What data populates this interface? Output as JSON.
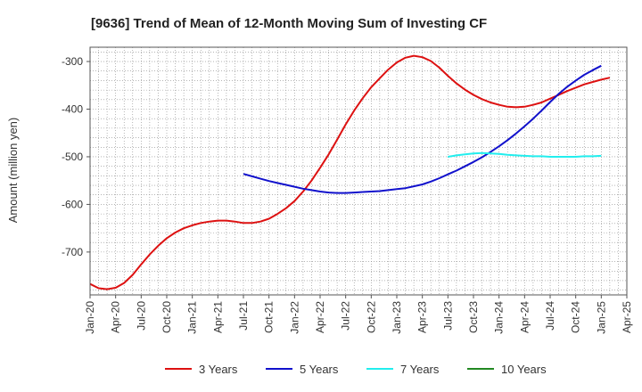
{
  "chart_data": {
    "type": "line",
    "title": "[9636]  Trend of Mean of 12-Month Moving Sum of Investing CF",
    "xlabel": "",
    "ylabel": "Amount (million yen)",
    "ylim": [
      -790,
      -270
    ],
    "yticks": [
      -300,
      -400,
      -500,
      -600,
      -700
    ],
    "ytick_labels": [
      "-300",
      "-400",
      "-500",
      "-600",
      "-700"
    ],
    "xlim": [
      "2020-01",
      "2025-04"
    ],
    "xtick_labels": [
      "Jan-20",
      "Apr-20",
      "Jul-20",
      "Oct-20",
      "Jan-21",
      "Apr-21",
      "Jul-21",
      "Oct-21",
      "Jan-22",
      "Apr-22",
      "Jul-22",
      "Oct-22",
      "Jan-23",
      "Apr-23",
      "Jul-23",
      "Oct-23",
      "Jan-24",
      "Apr-24",
      "Jul-24",
      "Oct-24",
      "Jan-25",
      "Apr-25"
    ],
    "grid": true,
    "legend_position": "bottom",
    "series": [
      {
        "name": "3 Years",
        "color": "#dd1111",
        "points": [
          [
            "2020-01",
            -767
          ],
          [
            "2020-02",
            -776
          ],
          [
            "2020-03",
            -778
          ],
          [
            "2020-04",
            -775
          ],
          [
            "2020-05",
            -765
          ],
          [
            "2020-06",
            -748
          ],
          [
            "2020-07",
            -726
          ],
          [
            "2020-08",
            -705
          ],
          [
            "2020-09",
            -687
          ],
          [
            "2020-10",
            -671
          ],
          [
            "2020-11",
            -659
          ],
          [
            "2020-12",
            -650
          ],
          [
            "2021-01",
            -644
          ],
          [
            "2021-02",
            -639
          ],
          [
            "2021-03",
            -636
          ],
          [
            "2021-04",
            -634
          ],
          [
            "2021-05",
            -634
          ],
          [
            "2021-06",
            -636
          ],
          [
            "2021-07",
            -639
          ],
          [
            "2021-08",
            -639
          ],
          [
            "2021-09",
            -636
          ],
          [
            "2021-10",
            -630
          ],
          [
            "2021-11",
            -620
          ],
          [
            "2021-12",
            -608
          ],
          [
            "2022-01",
            -593
          ],
          [
            "2022-02",
            -573
          ],
          [
            "2022-03",
            -550
          ],
          [
            "2022-04",
            -523
          ],
          [
            "2022-05",
            -495
          ],
          [
            "2022-06",
            -464
          ],
          [
            "2022-07",
            -432
          ],
          [
            "2022-08",
            -403
          ],
          [
            "2022-09",
            -377
          ],
          [
            "2022-10",
            -354
          ],
          [
            "2022-11",
            -335
          ],
          [
            "2022-12",
            -317
          ],
          [
            "2023-01",
            -302
          ],
          [
            "2023-02",
            -292
          ],
          [
            "2023-03",
            -288
          ],
          [
            "2023-04",
            -291
          ],
          [
            "2023-05",
            -299
          ],
          [
            "2023-06",
            -313
          ],
          [
            "2023-07",
            -330
          ],
          [
            "2023-08",
            -346
          ],
          [
            "2023-09",
            -359
          ],
          [
            "2023-10",
            -370
          ],
          [
            "2023-11",
            -379
          ],
          [
            "2023-12",
            -386
          ],
          [
            "2024-01",
            -391
          ],
          [
            "2024-02",
            -395
          ],
          [
            "2024-03",
            -396
          ],
          [
            "2024-04",
            -395
          ],
          [
            "2024-05",
            -391
          ],
          [
            "2024-06",
            -386
          ],
          [
            "2024-07",
            -378
          ],
          [
            "2024-08",
            -370
          ],
          [
            "2024-09",
            -362
          ],
          [
            "2024-10",
            -355
          ],
          [
            "2024-11",
            -348
          ],
          [
            "2024-12",
            -343
          ],
          [
            "2025-01",
            -338
          ],
          [
            "2025-02",
            -334
          ]
        ]
      },
      {
        "name": "5 Years",
        "color": "#1111cc",
        "points": [
          [
            "2021-07",
            -536
          ],
          [
            "2021-08",
            -541
          ],
          [
            "2021-09",
            -546
          ],
          [
            "2021-10",
            -551
          ],
          [
            "2021-11",
            -555
          ],
          [
            "2021-12",
            -559
          ],
          [
            "2022-01",
            -563
          ],
          [
            "2022-02",
            -567
          ],
          [
            "2022-03",
            -570
          ],
          [
            "2022-04",
            -573
          ],
          [
            "2022-05",
            -575
          ],
          [
            "2022-06",
            -576
          ],
          [
            "2022-07",
            -576
          ],
          [
            "2022-08",
            -575
          ],
          [
            "2022-09",
            -574
          ],
          [
            "2022-10",
            -573
          ],
          [
            "2022-11",
            -572
          ],
          [
            "2022-12",
            -570
          ],
          [
            "2023-01",
            -568
          ],
          [
            "2023-02",
            -566
          ],
          [
            "2023-03",
            -562
          ],
          [
            "2023-04",
            -558
          ],
          [
            "2023-05",
            -552
          ],
          [
            "2023-06",
            -545
          ],
          [
            "2023-07",
            -537
          ],
          [
            "2023-08",
            -529
          ],
          [
            "2023-09",
            -520
          ],
          [
            "2023-10",
            -511
          ],
          [
            "2023-11",
            -501
          ],
          [
            "2023-12",
            -490
          ],
          [
            "2024-01",
            -478
          ],
          [
            "2024-02",
            -465
          ],
          [
            "2024-03",
            -451
          ],
          [
            "2024-04",
            -436
          ],
          [
            "2024-05",
            -420
          ],
          [
            "2024-06",
            -403
          ],
          [
            "2024-07",
            -385
          ],
          [
            "2024-08",
            -368
          ],
          [
            "2024-09",
            -353
          ],
          [
            "2024-10",
            -340
          ],
          [
            "2024-11",
            -328
          ],
          [
            "2024-12",
            -318
          ],
          [
            "2025-01",
            -309
          ]
        ]
      },
      {
        "name": "7 Years",
        "color": "#22eeee",
        "points": [
          [
            "2023-07",
            -500
          ],
          [
            "2023-08",
            -497
          ],
          [
            "2023-09",
            -495
          ],
          [
            "2023-10",
            -493
          ],
          [
            "2023-11",
            -492
          ],
          [
            "2023-12",
            -493
          ],
          [
            "2024-01",
            -494
          ],
          [
            "2024-02",
            -496
          ],
          [
            "2024-03",
            -497
          ],
          [
            "2024-04",
            -498
          ],
          [
            "2024-05",
            -499
          ],
          [
            "2024-06",
            -499
          ],
          [
            "2024-07",
            -500
          ],
          [
            "2024-08",
            -500
          ],
          [
            "2024-09",
            -500
          ],
          [
            "2024-10",
            -500
          ],
          [
            "2024-11",
            -499
          ],
          [
            "2024-12",
            -499
          ],
          [
            "2025-01",
            -498
          ]
        ]
      },
      {
        "name": "10 Years",
        "color": "#228822",
        "points": []
      }
    ]
  }
}
